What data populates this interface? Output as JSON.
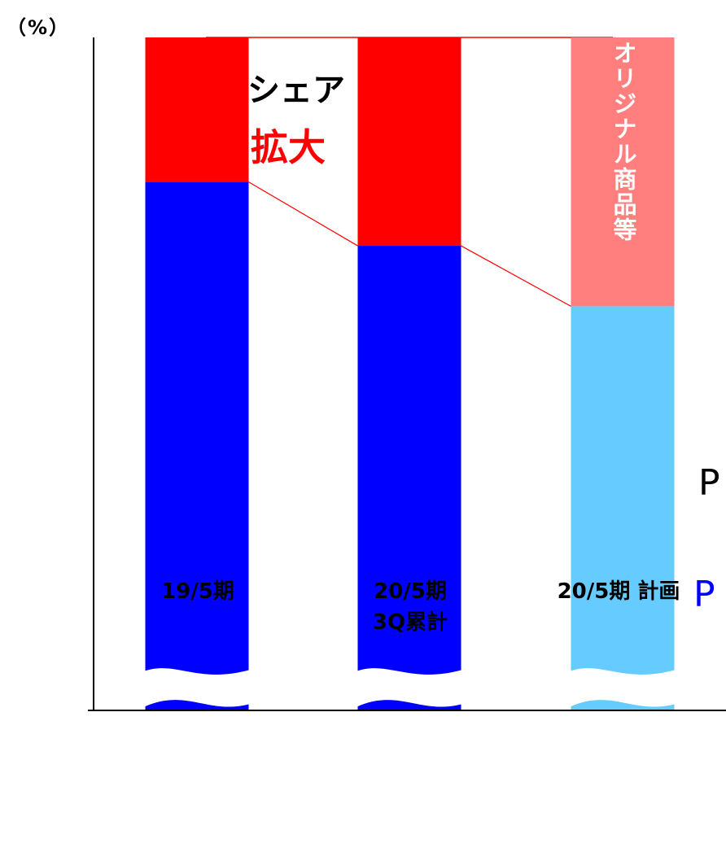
{
  "chart_data": {
    "type": "bar",
    "stacked": true,
    "unit_label": "（%）",
    "categories": [
      "19/5期",
      "20/5期\n3Q累計",
      "20/5期 計画"
    ],
    "series": [
      {
        "values": [
          78.5,
          69.0,
          60.0
        ],
        "colors": [
          "#0000ff",
          "#0000ff",
          "#66ccff"
        ]
      },
      {
        "name": "オリジナル商品等",
        "values": [
          21.5,
          31.0,
          40.0
        ],
        "colors": [
          "#ff0000",
          "#ff0000",
          "#ff7f7f"
        ]
      }
    ],
    "ylim": [
      0,
      100
    ],
    "axis_break": true,
    "annotation": {
      "line1": "シェア",
      "line2": "拡大"
    },
    "right_text": [
      "P",
      "P"
    ],
    "colors": {
      "accent_red": "#ff0000",
      "connector": "#ff0000"
    }
  }
}
